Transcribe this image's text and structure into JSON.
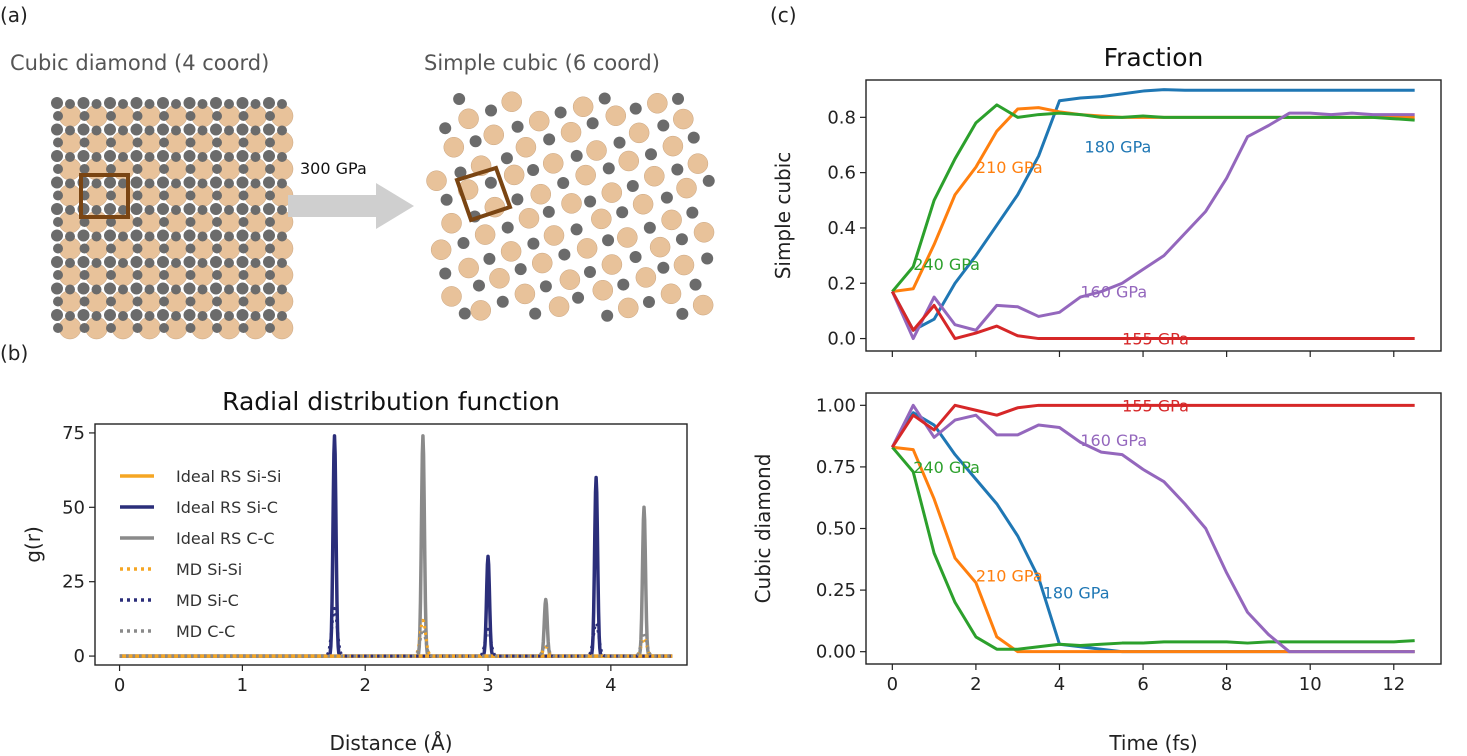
{
  "panels": {
    "a": "(a)",
    "b": "(b)",
    "c": "(c)"
  },
  "structures": {
    "left_label": "Cubic diamond (4 coord)",
    "right_label": "Simple cubic (6 coord)",
    "arrow_label": "300 GPa",
    "atom_colors": {
      "silicon": "#e8c29a",
      "carbon": "#6b6b6b",
      "box": "#7a4513",
      "arrow": "#cfcfcf"
    }
  },
  "chart_data": [
    {
      "id": "rdf",
      "type": "line",
      "title": "Radial distribution function",
      "xlabel": "Distance (Å)",
      "ylabel": "g(r)",
      "xlim": [
        -0.2,
        4.62
      ],
      "ylim": [
        -3,
        78
      ],
      "xticks": [
        0,
        1,
        2,
        3,
        4
      ],
      "yticks": [
        0,
        25,
        50,
        75
      ],
      "legend_position": "top-left",
      "series": [
        {
          "name": "Ideal RS Si-Si",
          "color": "#f5a623",
          "style": "solid",
          "peaks": []
        },
        {
          "name": "Ideal RS Si-C",
          "color": "#2b2e7a",
          "style": "solid",
          "peaks": [
            [
              1.75,
              74
            ],
            [
              3.0,
              33.5
            ],
            [
              3.88,
              60
            ]
          ]
        },
        {
          "name": "Ideal RS C-C",
          "color": "#8a8a8a",
          "style": "solid",
          "peaks": [
            [
              2.47,
              74
            ],
            [
              3.47,
              19
            ],
            [
              4.27,
              50
            ]
          ]
        },
        {
          "name": "MD Si-Si",
          "color": "#f5a623",
          "style": "dotted",
          "peaks": [
            [
              2.47,
              12
            ],
            [
              3.47,
              3
            ],
            [
              4.27,
              6
            ]
          ]
        },
        {
          "name": "MD Si-C",
          "color": "#2b2e7a",
          "style": "dotted",
          "peaks": [
            [
              1.75,
              16
            ],
            [
              3.0,
              9
            ],
            [
              3.88,
              11
            ]
          ]
        },
        {
          "name": "MD C-C",
          "color": "#8a8a8a",
          "style": "dotted",
          "peaks": [
            [
              2.47,
              9
            ],
            [
              3.47,
              4
            ],
            [
              4.27,
              8
            ]
          ]
        }
      ]
    },
    {
      "id": "simple_cubic",
      "type": "line",
      "title": "Fraction",
      "xlabel": "",
      "ylabel": "Simple cubic",
      "xlim": [
        -0.63,
        13.13
      ],
      "ylim": [
        -0.045,
        0.935
      ],
      "xticks": [
        0,
        2,
        4,
        6,
        8,
        10,
        12
      ],
      "show_x_tick_labels": false,
      "yticks": [
        0.0,
        0.2,
        0.4,
        0.6,
        0.8
      ],
      "ytick_labels": [
        "0.0",
        "0.2",
        "0.4",
        "0.6",
        "0.8"
      ],
      "x": [
        0,
        0.5,
        1,
        1.5,
        2,
        2.5,
        3,
        3.5,
        4,
        4.5,
        5,
        5.5,
        6,
        6.5,
        7,
        7.5,
        8,
        8.5,
        9,
        9.5,
        10,
        10.5,
        11,
        11.5,
        12,
        12.5
      ],
      "series": [
        {
          "name": "180 GPa",
          "color": "#1f77b4",
          "label_at": [
            4.6,
            0.695
          ],
          "values": [
            0.17,
            0.03,
            0.07,
            0.2,
            0.3,
            0.41,
            0.52,
            0.66,
            0.86,
            0.87,
            0.875,
            0.885,
            0.895,
            0.9,
            0.898,
            0.898,
            0.898,
            0.898,
            0.898,
            0.898,
            0.898,
            0.898,
            0.898,
            0.898,
            0.898,
            0.898
          ]
        },
        {
          "name": "210 GPa",
          "color": "#ff7f0e",
          "label_at": [
            2.0,
            0.62
          ],
          "values": [
            0.17,
            0.18,
            0.34,
            0.52,
            0.62,
            0.75,
            0.83,
            0.835,
            0.82,
            0.81,
            0.805,
            0.8,
            0.8,
            0.8,
            0.8,
            0.8,
            0.8,
            0.8,
            0.8,
            0.8,
            0.8,
            0.8,
            0.8,
            0.8,
            0.8,
            0.8
          ]
        },
        {
          "name": "240 GPa",
          "color": "#2ca02c",
          "label_at": [
            0.5,
            0.27
          ],
          "values": [
            0.17,
            0.26,
            0.5,
            0.65,
            0.78,
            0.845,
            0.8,
            0.81,
            0.815,
            0.81,
            0.8,
            0.8,
            0.805,
            0.8,
            0.8,
            0.8,
            0.8,
            0.8,
            0.8,
            0.8,
            0.8,
            0.8,
            0.8,
            0.8,
            0.795,
            0.79
          ]
        },
        {
          "name": "160 GPa",
          "color": "#9467bd",
          "label_at": [
            4.5,
            0.17
          ],
          "values": [
            0.17,
            0.0,
            0.15,
            0.05,
            0.03,
            0.12,
            0.115,
            0.08,
            0.095,
            0.15,
            0.17,
            0.2,
            0.25,
            0.3,
            0.38,
            0.46,
            0.58,
            0.73,
            0.77,
            0.815,
            0.815,
            0.81,
            0.815,
            0.81,
            0.81,
            0.81
          ]
        },
        {
          "name": "155 GPa",
          "color": "#d62728",
          "label_at": [
            5.5,
            0.0
          ],
          "values": [
            0.17,
            0.03,
            0.12,
            0.0,
            0.02,
            0.045,
            0.01,
            0.0,
            0.0,
            0.0,
            0.0,
            0.0,
            0.0,
            0.0,
            0.0,
            0.0,
            0.0,
            0.0,
            0.0,
            0.0,
            0.0,
            0.0,
            0.0,
            0.0,
            0.0,
            0.0
          ]
        }
      ]
    },
    {
      "id": "cubic_diamond",
      "type": "line",
      "title": "",
      "xlabel": "Time (fs)",
      "ylabel": "Cubic diamond",
      "xlim": [
        -0.63,
        13.13
      ],
      "ylim": [
        -0.05,
        1.05
      ],
      "xticks": [
        0,
        2,
        4,
        6,
        8,
        10,
        12
      ],
      "show_x_tick_labels": true,
      "yticks": [
        0.0,
        0.25,
        0.5,
        0.75,
        1.0
      ],
      "ytick_labels": [
        "0.00",
        "0.25",
        "0.50",
        "0.75",
        "1.00"
      ],
      "x": [
        0,
        0.5,
        1,
        1.5,
        2,
        2.5,
        3,
        3.5,
        4,
        4.5,
        5,
        5.5,
        6,
        6.5,
        7,
        7.5,
        8,
        8.5,
        9,
        9.5,
        10,
        10.5,
        11,
        11.5,
        12,
        12.5
      ],
      "series": [
        {
          "name": "180 GPa",
          "color": "#1f77b4",
          "label_at": [
            3.6,
            0.24
          ],
          "values": [
            0.83,
            0.97,
            0.92,
            0.8,
            0.7,
            0.6,
            0.47,
            0.3,
            0.03,
            0.02,
            0.01,
            0.0,
            0.0,
            0.0,
            0.0,
            0.0,
            0.0,
            0.0,
            0.0,
            0.0,
            0.0,
            0.0,
            0.0,
            0.0,
            0.0,
            0.0
          ]
        },
        {
          "name": "210 GPa",
          "color": "#ff7f0e",
          "label_at": [
            2.0,
            0.31
          ],
          "values": [
            0.83,
            0.82,
            0.62,
            0.38,
            0.28,
            0.06,
            0.0,
            0.0,
            0.0,
            0.0,
            0.0,
            0.0,
            0.0,
            0.0,
            0.0,
            0.0,
            0.0,
            0.0,
            0.0,
            0.0,
            0.0,
            0.0,
            0.0,
            0.0,
            0.0,
            0.0
          ]
        },
        {
          "name": "240 GPa",
          "color": "#2ca02c",
          "label_at": [
            0.5,
            0.75
          ],
          "values": [
            0.83,
            0.73,
            0.4,
            0.2,
            0.06,
            0.01,
            0.01,
            0.02,
            0.03,
            0.025,
            0.03,
            0.035,
            0.035,
            0.04,
            0.04,
            0.04,
            0.04,
            0.035,
            0.04,
            0.04,
            0.04,
            0.04,
            0.04,
            0.04,
            0.04,
            0.045
          ]
        },
        {
          "name": "160 GPa",
          "color": "#9467bd",
          "label_at": [
            4.5,
            0.86
          ],
          "values": [
            0.83,
            1.0,
            0.87,
            0.94,
            0.96,
            0.88,
            0.88,
            0.92,
            0.91,
            0.85,
            0.81,
            0.8,
            0.74,
            0.69,
            0.6,
            0.5,
            0.32,
            0.16,
            0.07,
            0.0,
            0.0,
            0.0,
            0.0,
            0.0,
            0.0,
            0.0
          ]
        },
        {
          "name": "155 GPa",
          "color": "#d62728",
          "label_at": [
            5.5,
            1.0
          ],
          "values": [
            0.83,
            0.96,
            0.9,
            1.0,
            0.98,
            0.96,
            0.99,
            1.0,
            1.0,
            1.0,
            1.0,
            1.0,
            1.0,
            1.0,
            1.0,
            1.0,
            1.0,
            1.0,
            1.0,
            1.0,
            1.0,
            1.0,
            1.0,
            1.0,
            1.0,
            1.0
          ]
        }
      ]
    }
  ]
}
